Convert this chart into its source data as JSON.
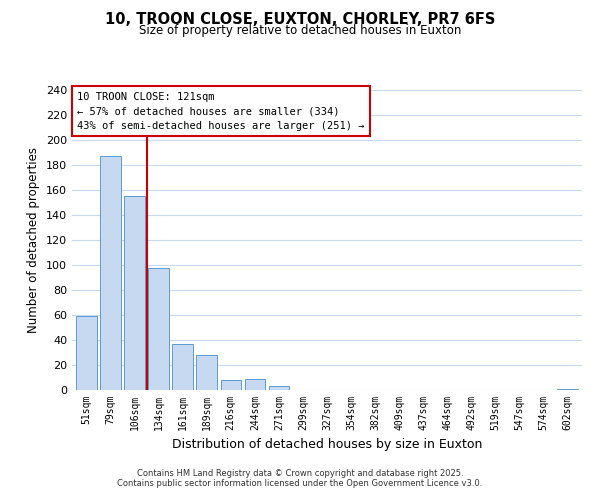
{
  "title": "10, TROON CLOSE, EUXTON, CHORLEY, PR7 6FS",
  "subtitle": "Size of property relative to detached houses in Euxton",
  "xlabel": "Distribution of detached houses by size in Euxton",
  "ylabel": "Number of detached properties",
  "bar_labels": [
    "51sqm",
    "79sqm",
    "106sqm",
    "134sqm",
    "161sqm",
    "189sqm",
    "216sqm",
    "244sqm",
    "271sqm",
    "299sqm",
    "327sqm",
    "354sqm",
    "382sqm",
    "409sqm",
    "437sqm",
    "464sqm",
    "492sqm",
    "519sqm",
    "547sqm",
    "574sqm",
    "602sqm"
  ],
  "bar_values": [
    59,
    187,
    155,
    98,
    37,
    28,
    8,
    9,
    3,
    0,
    0,
    0,
    0,
    0,
    0,
    0,
    0,
    0,
    0,
    0,
    1
  ],
  "bar_color": "#c6d9f0",
  "bar_edge_color": "#5b9bd5",
  "vline_x": 2.5,
  "vline_color": "#cc0000",
  "annotation_title": "10 TROON CLOSE: 121sqm",
  "annotation_line1": "← 57% of detached houses are smaller (334)",
  "annotation_line2": "43% of semi-detached houses are larger (251) →",
  "annotation_box_color": "#ffffff",
  "annotation_box_edge": "#cc0000",
  "ylim": [
    0,
    240
  ],
  "yticks": [
    0,
    20,
    40,
    60,
    80,
    100,
    120,
    140,
    160,
    180,
    200,
    220,
    240
  ],
  "footer1": "Contains HM Land Registry data © Crown copyright and database right 2025.",
  "footer2": "Contains public sector information licensed under the Open Government Licence v3.0.",
  "bg_color": "#ffffff",
  "grid_color": "#c8d8ee"
}
